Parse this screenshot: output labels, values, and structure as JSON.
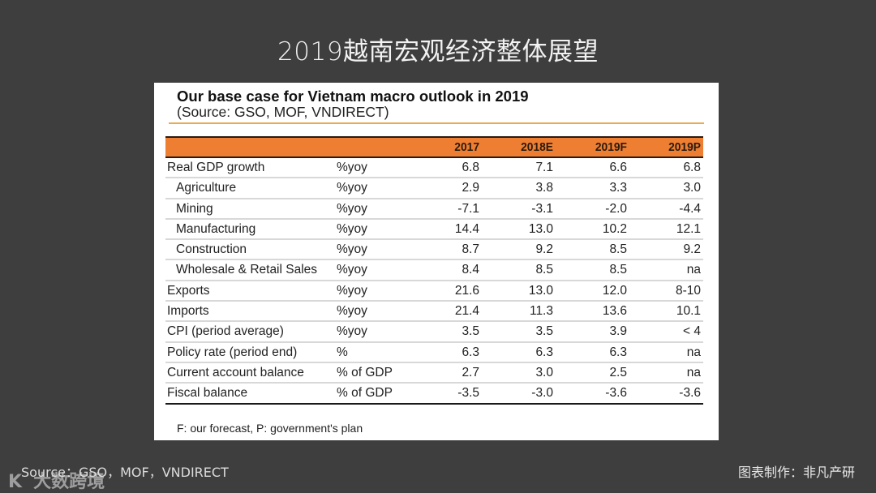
{
  "slide": {
    "title": "2019越南宏观经济整体展望",
    "source": "Source：GSO，MOF，VNDIRECT",
    "credit": "图表制作：非凡产研",
    "watermark": "大数跨境",
    "watermark_logo": "K"
  },
  "panel": {
    "title": "Our base case for Vietnam macro outlook in 2019",
    "subtitle": "(Source: GSO, MOF, VNDIRECT)",
    "footnote": "F: our forecast, P: government's plan",
    "colors": {
      "header_bg": "#ee7f32",
      "title_rule": "#eba955"
    }
  },
  "table": {
    "columns": [
      "2017",
      "2018E",
      "2019F",
      "2019P"
    ],
    "rows": [
      {
        "label": "Real GDP growth",
        "indent": false,
        "unit": "%yoy",
        "values": [
          "6.8",
          "7.1",
          "6.6",
          "6.8"
        ]
      },
      {
        "label": "Agriculture",
        "indent": true,
        "unit": "%yoy",
        "values": [
          "2.9",
          "3.8",
          "3.3",
          "3.0"
        ]
      },
      {
        "label": "Mining",
        "indent": true,
        "unit": "%yoy",
        "values": [
          "-7.1",
          "-3.1",
          "-2.0",
          "-4.4"
        ]
      },
      {
        "label": "Manufacturing",
        "indent": true,
        "unit": "%yoy",
        "values": [
          "14.4",
          "13.0",
          "10.2",
          "12.1"
        ]
      },
      {
        "label": "Construction",
        "indent": true,
        "unit": "%yoy",
        "values": [
          "8.7",
          "9.2",
          "8.5",
          "9.2"
        ]
      },
      {
        "label": "Wholesale & Retail Sales",
        "indent": true,
        "unit": "%yoy",
        "values": [
          "8.4",
          "8.5",
          "8.5",
          "na"
        ]
      },
      {
        "label": "Exports",
        "indent": false,
        "unit": "%yoy",
        "values": [
          "21.6",
          "13.0",
          "12.0",
          "8-10"
        ]
      },
      {
        "label": "Imports",
        "indent": false,
        "unit": "%yoy",
        "values": [
          "21.4",
          "11.3",
          "13.6",
          "10.1"
        ]
      },
      {
        "label": "CPI (period average)",
        "indent": false,
        "unit": "%yoy",
        "values": [
          "3.5",
          "3.5",
          "3.9",
          "< 4"
        ]
      },
      {
        "label": "Policy rate (period end)",
        "indent": false,
        "unit": "%",
        "values": [
          "6.3",
          "6.3",
          "6.3",
          "na"
        ]
      },
      {
        "label": "Current account balance",
        "indent": false,
        "unit": "% of GDP",
        "values": [
          "2.7",
          "3.0",
          "2.5",
          "na"
        ]
      },
      {
        "label": "Fiscal balance",
        "indent": false,
        "unit": "% of GDP",
        "values": [
          "-3.5",
          "-3.0",
          "-3.6",
          "-3.6"
        ]
      }
    ]
  }
}
